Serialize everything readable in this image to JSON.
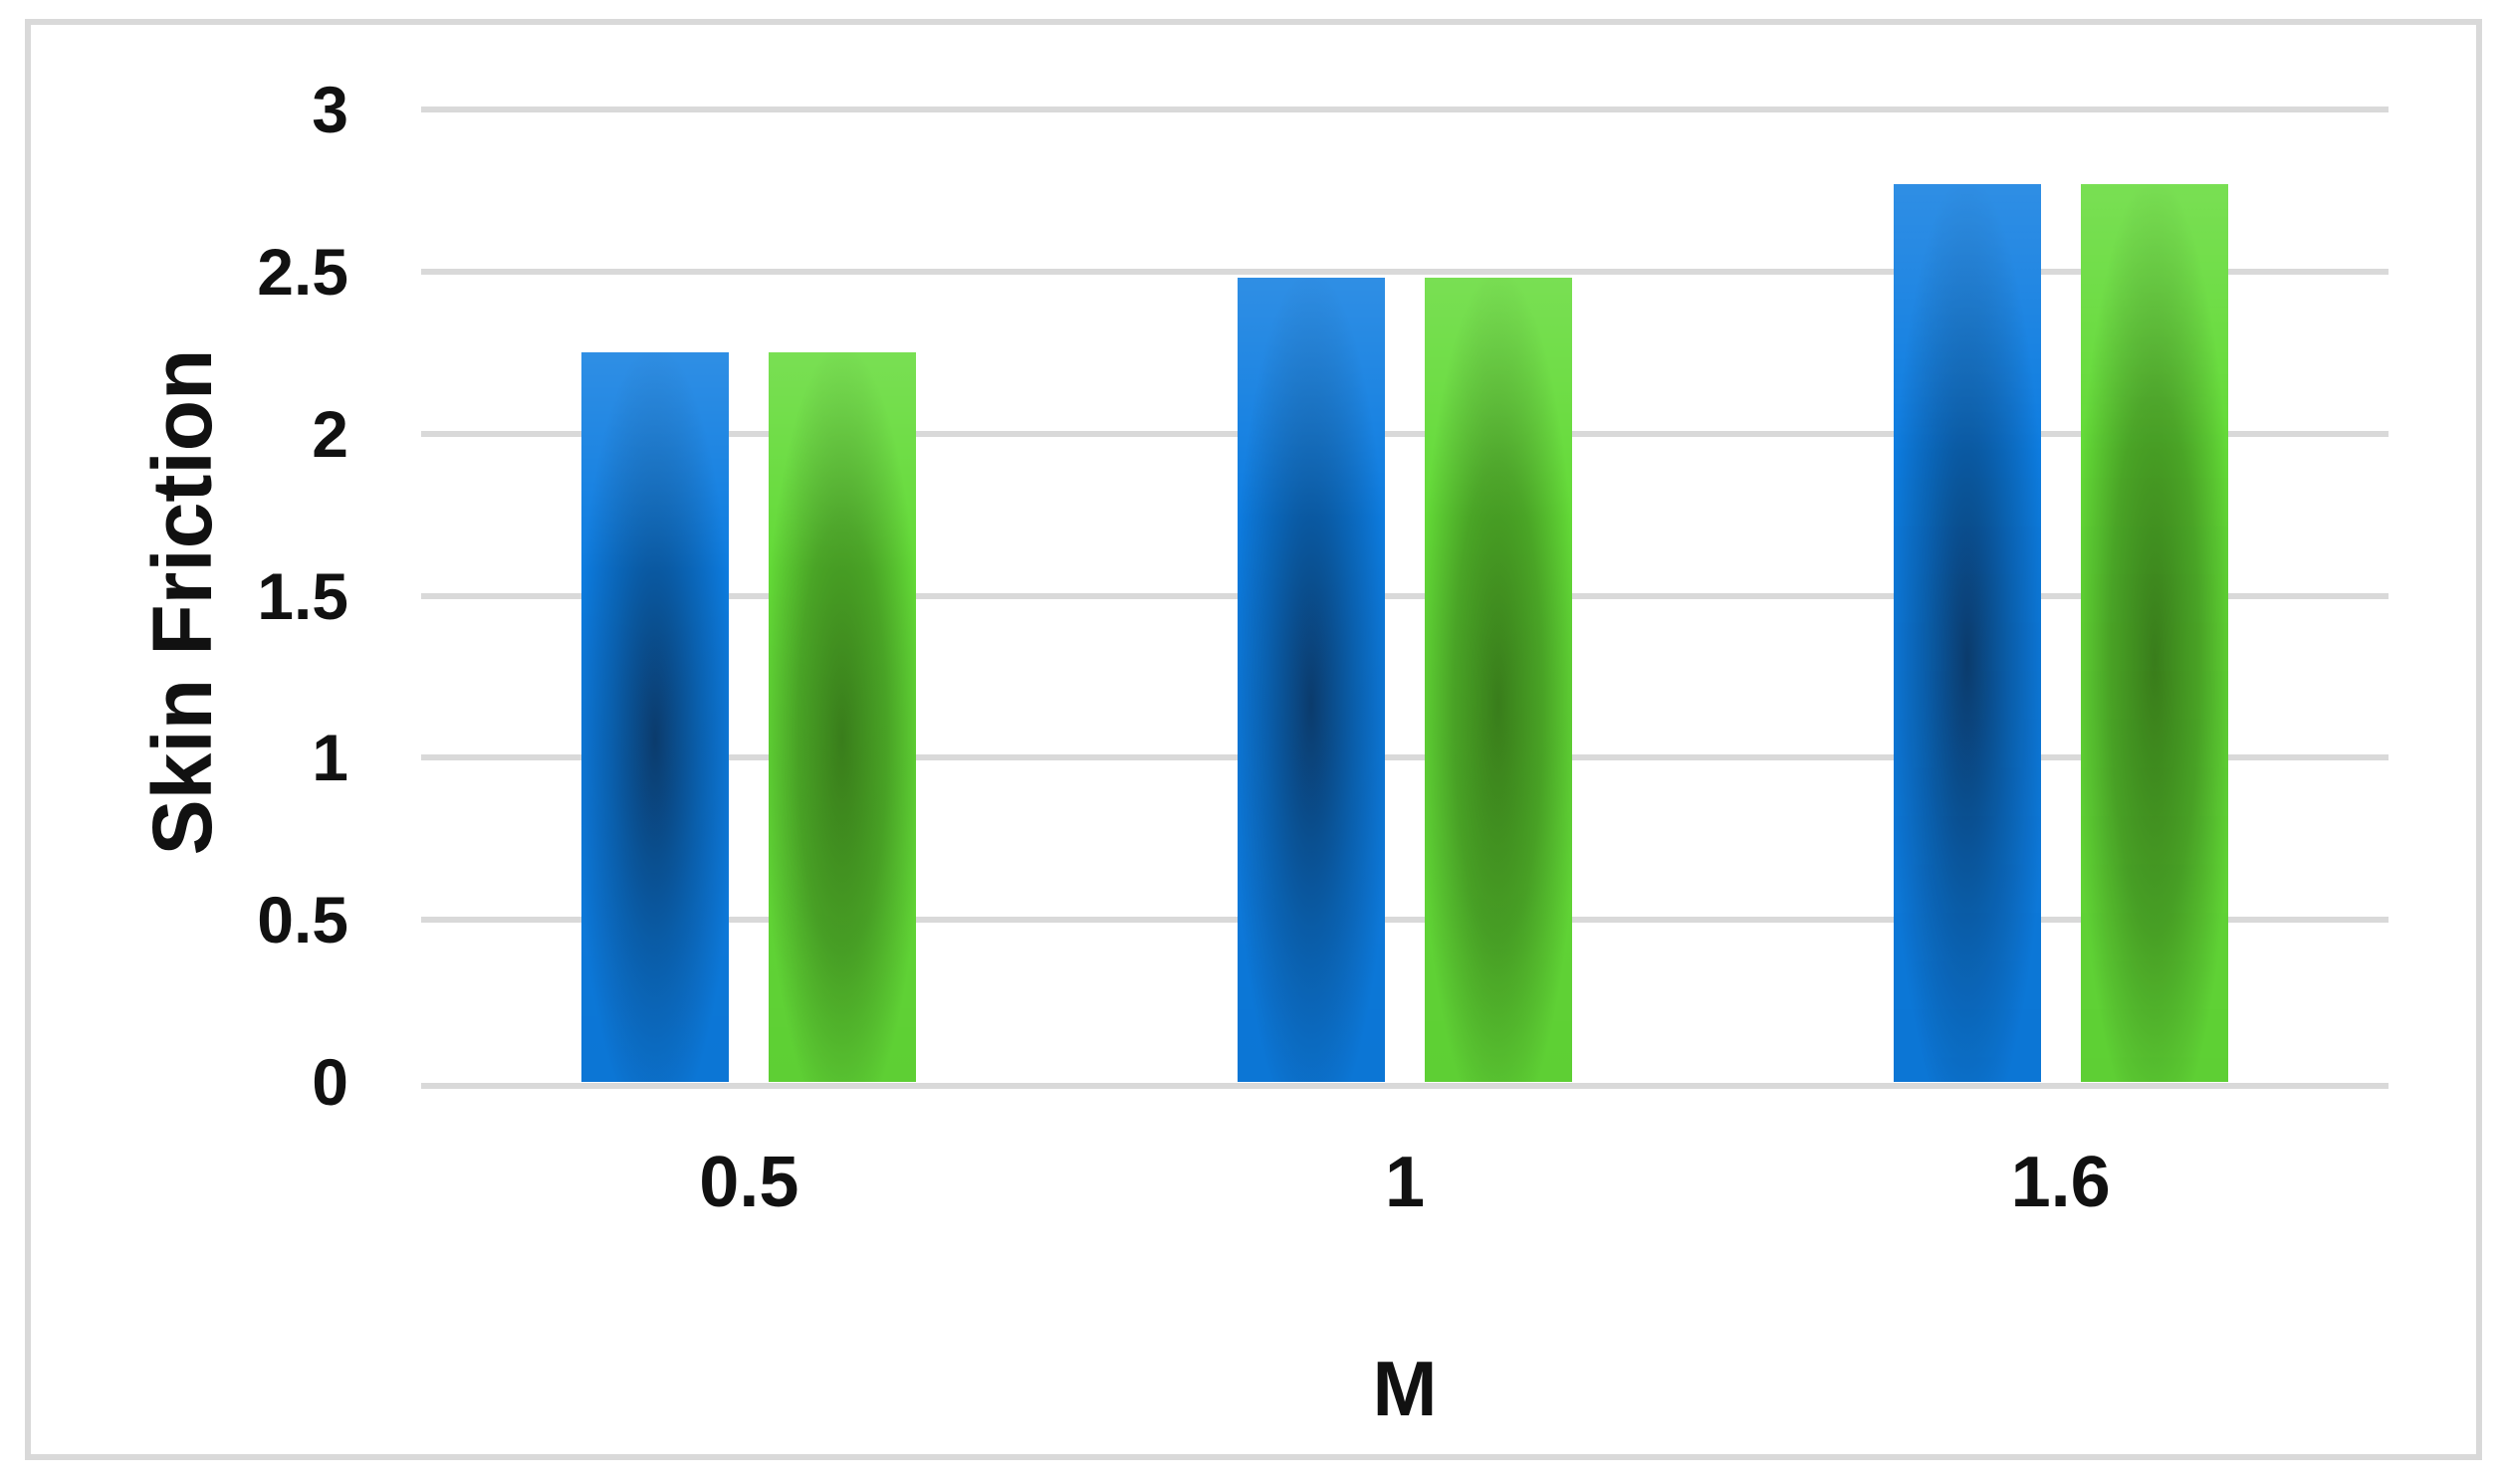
{
  "figure": {
    "background_color": "#ffffff",
    "frame_color": "#d9d9d9"
  },
  "chart_data": {
    "type": "bar",
    "title": "",
    "xlabel": "M",
    "ylabel": "Skin Friction",
    "categories": [
      "0.5",
      "1",
      "1.6"
    ],
    "series": [
      {
        "name": "series-blue",
        "values": [
          2.25,
          2.48,
          2.77
        ],
        "color_light": "#0d7ce0",
        "color_mid": "#0a61b0",
        "color_dark": "#0b3c6e"
      },
      {
        "name": "series-green",
        "values": [
          2.25,
          2.48,
          2.77
        ],
        "color_light": "#63da37",
        "color_mid": "#4aa526",
        "color_dark": "#3a7f1b"
      }
    ],
    "ylim": [
      0,
      3
    ],
    "ytick_labels": [
      "0",
      "0.5",
      "1",
      "1.5",
      "2",
      "2.5",
      "3"
    ],
    "grid": true,
    "gridline_color": "#d9d9d9",
    "legend_position": "none"
  }
}
